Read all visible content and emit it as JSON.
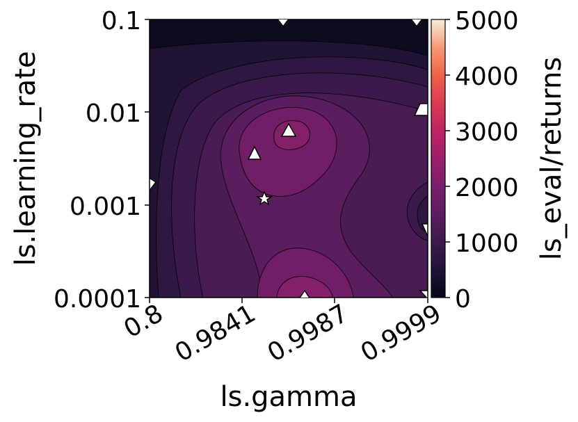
{
  "chart_data": {
    "type": "contour",
    "xlabel": "ls.gamma",
    "ylabel": "ls.learning_rate",
    "x_scale": "categorical-spaced",
    "y_scale": "log",
    "x_ticks": [
      "0.8",
      "0.9841",
      "0.9987",
      "0.9999"
    ],
    "y_ticks": [
      "0.1",
      "0.01",
      "0.001",
      "0.0001"
    ],
    "colorbar": {
      "label": "ls_eval/returns",
      "ticks": [
        "0",
        "1000",
        "2000",
        "3000",
        "4000",
        "5000"
      ],
      "range": [
        0,
        5000
      ],
      "colormap": "rocket"
    },
    "contour_levels": [
      0,
      250,
      500,
      750,
      1000,
      1250,
      1500,
      1750,
      2000
    ],
    "trials": [
      {
        "marker": "triangle",
        "gamma": "0.9841-0.9987",
        "learning_rate": 0.1
      },
      {
        "marker": "triangle",
        "gamma": "0.9999",
        "learning_rate": 0.1
      },
      {
        "marker": "triangle",
        "gamma": "0.9999",
        "learning_rate": 0.01
      },
      {
        "marker": "triangle",
        "gamma": "0.9841-0.9987",
        "learning_rate": 0.006
      },
      {
        "marker": "triangle",
        "gamma": "0.9841",
        "learning_rate": 0.0035
      },
      {
        "marker": "triangle",
        "gamma": "0.8",
        "learning_rate": 0.0016
      },
      {
        "marker": "star",
        "gamma": "0.9841",
        "learning_rate": 0.0012
      },
      {
        "marker": "triangle",
        "gamma": "0.9999",
        "learning_rate": 0.0005
      },
      {
        "marker": "triangle",
        "gamma": "0.9987",
        "learning_rate": 0.0001
      },
      {
        "marker": "triangle",
        "gamma": "0.9999",
        "learning_rate": 0.0001
      }
    ]
  }
}
